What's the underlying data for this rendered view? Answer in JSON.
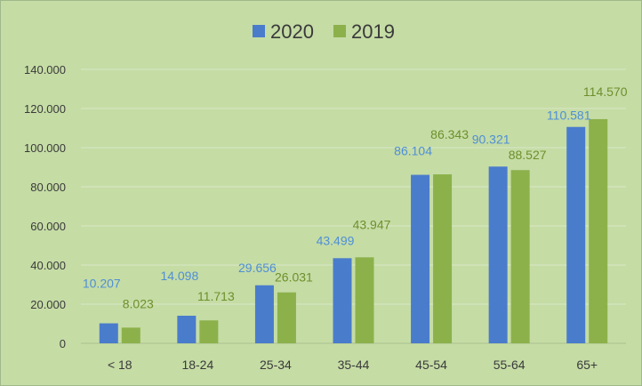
{
  "chart_data": {
    "type": "bar",
    "categories": [
      "< 18",
      "18-24",
      "25-34",
      "35-44",
      "45-54",
      "55-64",
      "65+"
    ],
    "series": [
      {
        "name": "2020",
        "color": "#4a7ccc",
        "values": [
          10207,
          14098,
          29656,
          43499,
          86104,
          90321,
          110581
        ],
        "labels": [
          "10.207",
          "14.098",
          "29.656",
          "43.499",
          "86.104",
          "90.321",
          "110.581"
        ]
      },
      {
        "name": "2019",
        "color": "#8cb14b",
        "values": [
          8023,
          11713,
          26031,
          43947,
          86343,
          88527,
          114570
        ],
        "labels": [
          "8.023",
          "11.713",
          "26.031",
          "43.947",
          "86.343",
          "88.527",
          "114.570"
        ]
      }
    ],
    "label_colors": {
      "2020": "#4f8fd6",
      "2019": "#6e8f2c"
    },
    "ylim": [
      0,
      140000
    ],
    "yticks": [
      0,
      20000,
      40000,
      60000,
      80000,
      100000,
      120000,
      140000
    ],
    "ytick_labels": [
      "0",
      "20.000",
      "40.000",
      "60.000",
      "80.000",
      "100.000",
      "120.000",
      "140.000"
    ],
    "grid": true,
    "legend": "top-center",
    "xlabel": "",
    "ylabel": ""
  }
}
